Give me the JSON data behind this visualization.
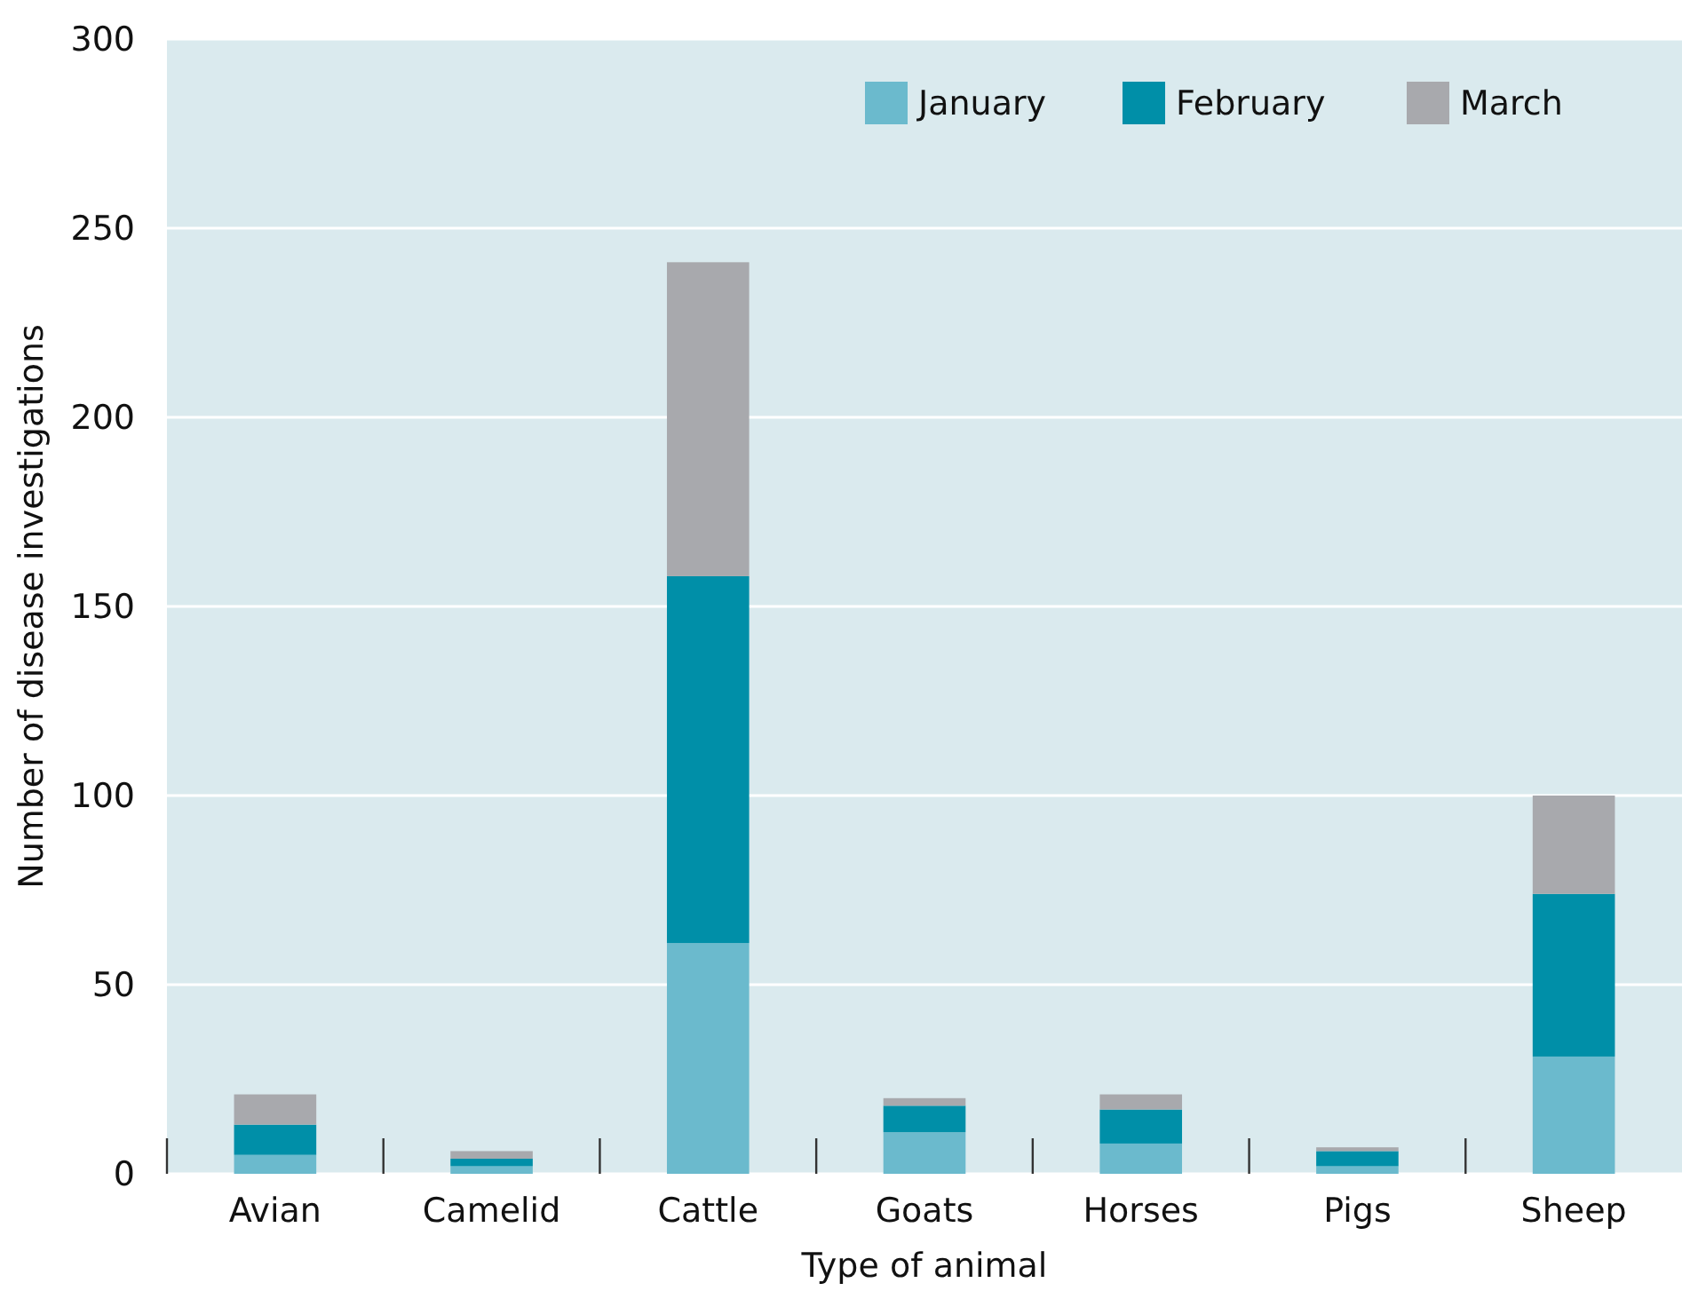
{
  "chart_data": {
    "type": "bar",
    "stacked": true,
    "xlabel": "Type of animal",
    "ylabel": "Number of disease investigations",
    "categories": [
      "Avian",
      "Camelid",
      "Cattle",
      "Goats",
      "Horses",
      "Pigs",
      "Sheep"
    ],
    "series": [
      {
        "name": "January",
        "color": "#6bbacd",
        "values": [
          5,
          2,
          61,
          11,
          8,
          2,
          31
        ]
      },
      {
        "name": "February",
        "color": "#008fa8",
        "values": [
          8,
          2,
          97,
          7,
          9,
          4,
          43
        ]
      },
      {
        "name": "March",
        "color": "#a8a9ad",
        "values": [
          8,
          2,
          83,
          2,
          4,
          1,
          26
        ]
      }
    ],
    "ylim": [
      0,
      300
    ],
    "yticks": [
      0,
      50,
      100,
      150,
      200,
      250,
      300
    ],
    "grid": "y",
    "legend": "top right"
  }
}
